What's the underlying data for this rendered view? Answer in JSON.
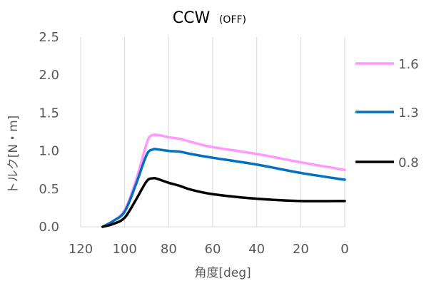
{
  "chart_data": {
    "type": "line",
    "title": "CCW",
    "subtitle": "(OFF)",
    "xlabel": "角度[deg]",
    "ylabel": "トルク[N・m]",
    "xlim": [
      120,
      0
    ],
    "ylim": [
      0,
      2.5
    ],
    "x_reversed": true,
    "x_ticks": [
      120,
      100,
      80,
      60,
      40,
      20,
      0
    ],
    "y_ticks": [
      "0.0",
      "0.5",
      "1.0",
      "1.5",
      "2.0",
      "2.5"
    ],
    "grid": "vertical",
    "legend_position": "right",
    "series": [
      {
        "name": "1.6",
        "color": "#ff99ff",
        "points": [
          [
            110,
            0.0
          ],
          [
            105,
            0.08
          ],
          [
            100,
            0.22
          ],
          [
            95,
            0.6
          ],
          [
            90,
            1.1
          ],
          [
            88,
            1.2
          ],
          [
            85,
            1.21
          ],
          [
            80,
            1.18
          ],
          [
            75,
            1.16
          ],
          [
            70,
            1.12
          ],
          [
            60,
            1.05
          ],
          [
            40,
            0.96
          ],
          [
            20,
            0.85
          ],
          [
            0,
            0.75
          ]
        ]
      },
      {
        "name": "1.3",
        "color": "#0070c0",
        "points": [
          [
            110,
            0.0
          ],
          [
            105,
            0.08
          ],
          [
            100,
            0.2
          ],
          [
            95,
            0.55
          ],
          [
            90,
            0.95
          ],
          [
            87,
            1.02
          ],
          [
            85,
            1.02
          ],
          [
            80,
            1.0
          ],
          [
            75,
            0.99
          ],
          [
            70,
            0.96
          ],
          [
            60,
            0.91
          ],
          [
            40,
            0.82
          ],
          [
            20,
            0.71
          ],
          [
            0,
            0.62
          ]
        ]
      },
      {
        "name": "0.8",
        "color": "#000000",
        "points": [
          [
            110,
            0.0
          ],
          [
            105,
            0.04
          ],
          [
            100,
            0.12
          ],
          [
            95,
            0.35
          ],
          [
            90,
            0.6
          ],
          [
            87,
            0.64
          ],
          [
            85,
            0.63
          ],
          [
            80,
            0.58
          ],
          [
            75,
            0.54
          ],
          [
            70,
            0.49
          ],
          [
            60,
            0.43
          ],
          [
            40,
            0.37
          ],
          [
            20,
            0.34
          ],
          [
            0,
            0.34
          ]
        ]
      }
    ]
  }
}
